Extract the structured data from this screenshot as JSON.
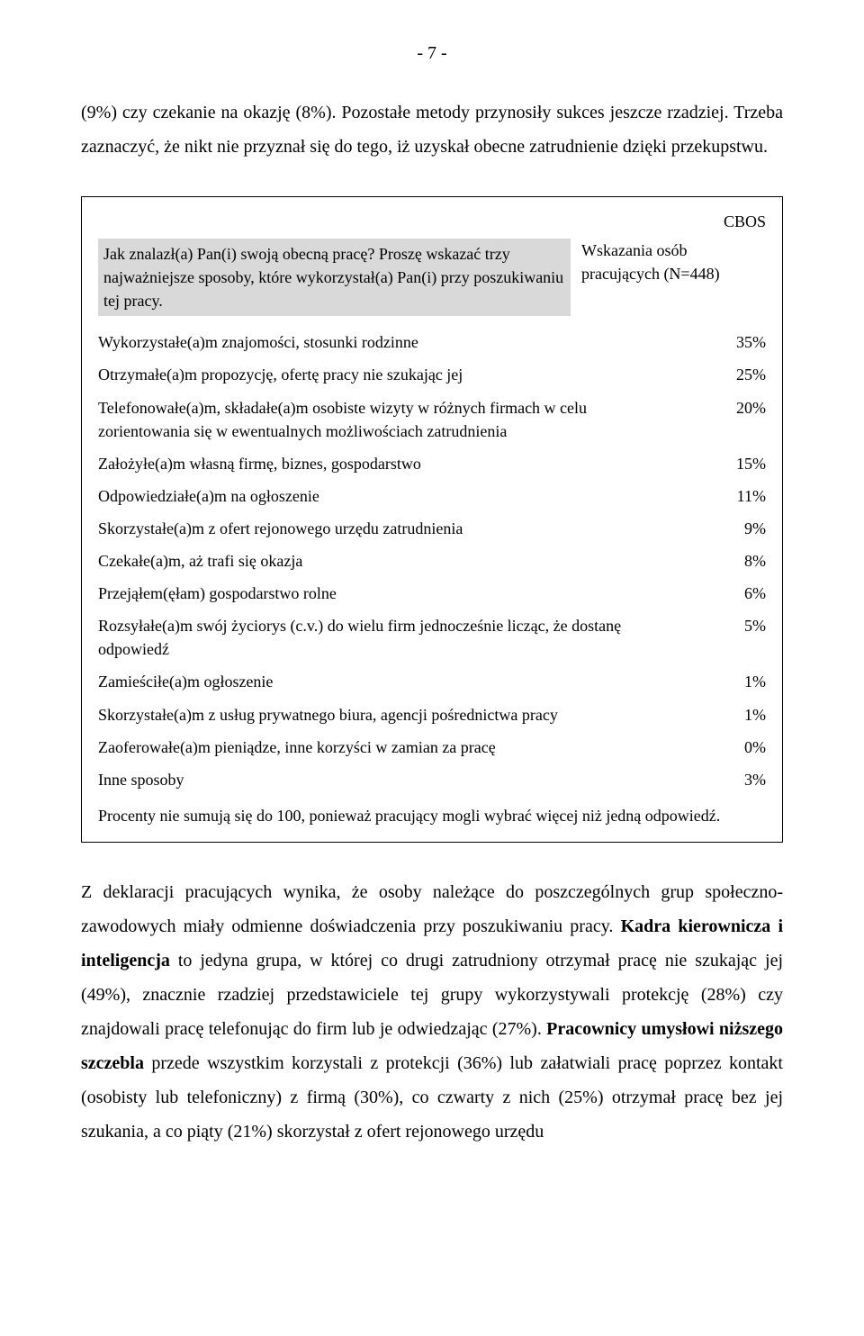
{
  "page_number": "- 7 -",
  "intro": "(9%) czy czekanie na okazję (8%). Pozostałe metody przynosiły sukces jeszcze rzadziej. Trzeba zaznaczyć, że nikt nie przyznał się do tego, iż uzyskał obecne zatrudnienie dzięki przekupstwu.",
  "table": {
    "cbos_label": "CBOS",
    "question": "Jak znalazł(a) Pan(i) swoją obecną pracę? Proszę wskazać trzy najważniejsze sposoby, które wykorzystał(a) Pan(i) przy poszukiwaniu tej pracy.",
    "indicator": "Wskazania osób pracujących (N=448)",
    "rows": [
      {
        "label": "Wykorzystałe(a)m znajomości, stosunki rodzinne",
        "value": "35%"
      },
      {
        "label": "Otrzymałe(a)m propozycję, ofertę pracy nie szukając jej",
        "value": "25%"
      },
      {
        "label": "Telefonowałe(a)m, składałe(a)m osobiste wizyty w różnych firmach w celu zorientowania się w ewentualnych możliwościach zatrudnienia",
        "value": "20%"
      },
      {
        "label": "Założyłe(a)m własną firmę, biznes, gospodarstwo",
        "value": "15%"
      },
      {
        "label": "Odpowiedziałe(a)m na ogłoszenie",
        "value": "11%"
      },
      {
        "label": "Skorzystałe(a)m z ofert rejonowego urzędu zatrudnienia",
        "value": "9%"
      },
      {
        "label": "Czekałe(a)m, aż trafi się okazja",
        "value": "8%"
      },
      {
        "label": "Przejąłem(ęłam) gospodarstwo rolne",
        "value": "6%"
      },
      {
        "label": "Rozsyłałe(a)m swój życiorys (c.v.) do wielu firm jednocześnie licząc, że dostanę odpowiedź",
        "value": "5%"
      },
      {
        "label": "Zamieściłe(a)m ogłoszenie",
        "value": "1%"
      },
      {
        "label": "Skorzystałe(a)m z usług prywatnego biura, agencji pośrednictwa pracy",
        "value": "1%"
      },
      {
        "label": "Zaoferowałe(a)m pieniądze, inne korzyści w zamian za pracę",
        "value": "0%"
      },
      {
        "label": "Inne sposoby",
        "value": "3%"
      }
    ],
    "footnote": "Procenty nie sumują się do 100, ponieważ pracujący mogli wybrać więcej niż jedną odpowiedź."
  },
  "outro": {
    "seg1": "Z deklaracji pracujących wynika, że osoby należące do poszczególnych grup społeczno-zawodowych miały odmienne doświadczenia przy poszukiwaniu pracy. ",
    "bold1": "Kadra kierownicza i inteligencja",
    "seg2": " to jedyna grupa, w której co drugi zatrudniony otrzymał pracę nie szukając jej (49%), znacznie rzadziej przedstawiciele tej grupy wykorzystywali protekcję (28%) czy znajdowali pracę telefonując do firm lub je odwiedzając (27%). ",
    "bold2": "Pracownicy umysłowi niższego szczebla",
    "seg3": " przede wszystkim korzystali z protekcji (36%) lub załatwiali pracę poprzez kontakt (osobisty lub telefoniczny) z firmą (30%), co czwarty z nich (25%) otrzymał pracę bez jej szukania, a co piąty (21%) skorzystał z ofert rejonowego urzędu"
  }
}
